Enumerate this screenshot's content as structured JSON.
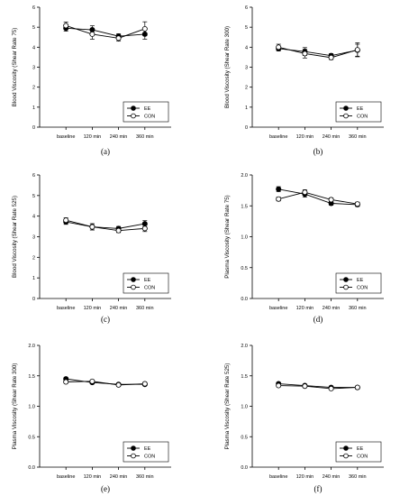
{
  "chart_data": [
    {
      "type": "line",
      "panel_label": "(a)",
      "ylabel": "Blood Viscosity (Shear Rate 75)",
      "categories": [
        "baseline",
        "120 min",
        "240 min",
        "360 min"
      ],
      "ylim": [
        0,
        6
      ],
      "yticks": [
        "0",
        "1",
        "2",
        "3",
        "4",
        "5",
        "6"
      ],
      "legend_position": "bottom-right",
      "series": [
        {
          "name": "EE",
          "marker": "filled-circle",
          "values": [
            4.95,
            4.87,
            4.55,
            4.65
          ],
          "errors": [
            0.15,
            0.2,
            0.12,
            0.25
          ]
        },
        {
          "name": "CON",
          "marker": "open-circle",
          "values": [
            5.08,
            4.65,
            4.45,
            4.92
          ],
          "errors": [
            0.18,
            0.25,
            0.15,
            0.35
          ]
        }
      ]
    },
    {
      "type": "line",
      "panel_label": "(b)",
      "ylabel": "Blood Viscosity (Shear Rate 300)",
      "categories": [
        "baseline",
        "120 min",
        "240 min",
        "360 min"
      ],
      "ylim": [
        0,
        6
      ],
      "yticks": [
        "0",
        "1",
        "2",
        "3",
        "4",
        "5",
        "6"
      ],
      "legend_position": "bottom-right",
      "series": [
        {
          "name": "EE",
          "marker": "filled-circle",
          "values": [
            3.93,
            3.78,
            3.58,
            3.85
          ],
          "errors": [
            0.12,
            0.2,
            0.1,
            0.3
          ]
        },
        {
          "name": "CON",
          "marker": "open-circle",
          "values": [
            4.0,
            3.68,
            3.48,
            3.87
          ],
          "errors": [
            0.15,
            0.22,
            0.1,
            0.35
          ]
        }
      ]
    },
    {
      "type": "line",
      "panel_label": "(c)",
      "ylabel": "Blood Viscosity (Shear Rate 525)",
      "categories": [
        "baseline",
        "120 min",
        "240 min",
        "360 min"
      ],
      "ylim": [
        0,
        6
      ],
      "yticks": [
        "0",
        "1",
        "2",
        "3",
        "4",
        "5",
        "6"
      ],
      "legend_position": "bottom-right",
      "series": [
        {
          "name": "EE",
          "marker": "filled-circle",
          "values": [
            3.72,
            3.48,
            3.4,
            3.63
          ],
          "errors": [
            0.12,
            0.15,
            0.1,
            0.15
          ]
        },
        {
          "name": "CON",
          "marker": "open-circle",
          "values": [
            3.8,
            3.48,
            3.3,
            3.4
          ],
          "errors": [
            0.12,
            0.15,
            0.1,
            0.15
          ]
        }
      ]
    },
    {
      "type": "line",
      "panel_label": "(d)",
      "ylabel": "Plasma Viscosity (Shear Rate 75)",
      "categories": [
        "baseline",
        "120 min",
        "240 min",
        "360 min"
      ],
      "ylim": [
        0,
        2
      ],
      "yticks": [
        "0.0",
        "0.5",
        "1.0",
        "1.5",
        "2.0"
      ],
      "legend_position": "bottom-right",
      "series": [
        {
          "name": "EE",
          "marker": "filled-circle",
          "values": [
            1.77,
            1.69,
            1.54,
            1.52
          ],
          "errors": [
            0.04,
            0.05,
            0.03,
            0.03
          ]
        },
        {
          "name": "CON",
          "marker": "open-circle",
          "values": [
            1.61,
            1.72,
            1.6,
            1.53
          ],
          "errors": [
            0.03,
            0.04,
            0.03,
            0.03
          ]
        }
      ]
    },
    {
      "type": "line",
      "panel_label": "(e)",
      "ylabel": "Plasma Viscosity (Shear Rate 300)",
      "categories": [
        "baseline",
        "120 min",
        "240 min",
        "360 min"
      ],
      "ylim": [
        0,
        2
      ],
      "yticks": [
        "0.0",
        "0.5",
        "1.0",
        "1.5",
        "2.0"
      ],
      "legend_position": "bottom-right",
      "series": [
        {
          "name": "EE",
          "marker": "filled-circle",
          "values": [
            1.45,
            1.39,
            1.36,
            1.36
          ],
          "errors": [
            0.02,
            0.02,
            0.02,
            0.02
          ]
        },
        {
          "name": "CON",
          "marker": "open-circle",
          "values": [
            1.4,
            1.41,
            1.35,
            1.37
          ],
          "errors": [
            0.02,
            0.02,
            0.02,
            0.02
          ]
        }
      ]
    },
    {
      "type": "line",
      "panel_label": "(f)",
      "ylabel": "Plasma Viscosity (Shear Rate 525)",
      "categories": [
        "baseline",
        "120 min",
        "240 min",
        "360 min"
      ],
      "ylim": [
        0,
        2
      ],
      "yticks": [
        "0.0",
        "0.5",
        "1.0",
        "1.5",
        "2.0"
      ],
      "legend_position": "bottom-right",
      "series": [
        {
          "name": "EE",
          "marker": "filled-circle",
          "values": [
            1.37,
            1.34,
            1.31,
            1.31
          ],
          "errors": [
            0.02,
            0.02,
            0.02,
            0.02
          ]
        },
        {
          "name": "CON",
          "marker": "open-circle",
          "values": [
            1.34,
            1.33,
            1.29,
            1.31
          ],
          "errors": [
            0.02,
            0.02,
            0.02,
            0.02
          ]
        }
      ]
    }
  ]
}
